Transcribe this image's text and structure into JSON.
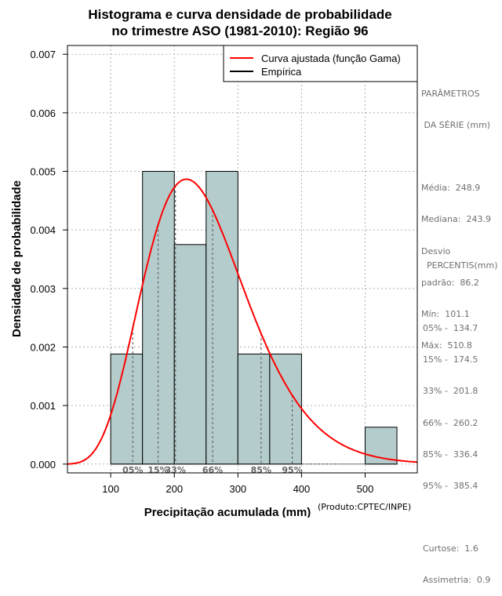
{
  "chart_data": {
    "type": "histogram",
    "title": [
      "Histograma e curva densidade de probabilidade",
      "no trimestre ASO (1981-2010): Região 96"
    ],
    "xlabel": "Precipitação acumulada (mm)",
    "ylabel": "Densidade de probabilidade",
    "xlim": [
      32,
      582
    ],
    "ylim": [
      -0.00015,
      0.00715
    ],
    "x_ticks": [
      100,
      200,
      300,
      400,
      500
    ],
    "y_ticks": [
      0.0,
      0.001,
      0.002,
      0.003,
      0.004,
      0.005,
      0.006,
      0.007
    ],
    "y_tick_labels": [
      "0.000",
      "0.001",
      "0.002",
      "0.003",
      "0.004",
      "0.005",
      "0.006",
      "0.007"
    ],
    "grid": true,
    "bins": [
      {
        "x0": 100,
        "x1": 150,
        "density": 0.00188
      },
      {
        "x0": 150,
        "x1": 200,
        "density": 0.005
      },
      {
        "x0": 200,
        "x1": 250,
        "density": 0.00375
      },
      {
        "x0": 250,
        "x1": 300,
        "density": 0.005
      },
      {
        "x0": 300,
        "x1": 350,
        "density": 0.00188
      },
      {
        "x0": 350,
        "x1": 400,
        "density": 0.00188
      },
      {
        "x0": 500,
        "x1": 550,
        "density": 0.00063
      }
    ],
    "gamma_fit": {
      "shape": 8.3,
      "scale": 30.0
    },
    "percentile_markers": [
      {
        "label": "05%",
        "value": 134.7
      },
      {
        "label": "15%",
        "value": 174.5
      },
      {
        "label": "33%",
        "value": 201.8
      },
      {
        "label": "66%",
        "value": 260.2
      },
      {
        "label": "85%",
        "value": 336.4
      },
      {
        "label": "95%",
        "value": 385.4
      }
    ],
    "legend": {
      "position": "top-right",
      "entries": [
        {
          "label": "Curva ajustada (função Gama)",
          "color": "#ff0000"
        },
        {
          "label": "Empírica",
          "color": "#000000"
        }
      ]
    },
    "colors": {
      "bar_fill": "#b4cccc",
      "curve": "#ff0000",
      "grid": "#b0b0b0",
      "marker": "#666666"
    }
  },
  "parametros": {
    "header1": "PARÂMETROS",
    "header2": " DA SÉRIE (mm)",
    "media": "Média:  248.9",
    "mediana": "Mediana:  243.9",
    "desvio1": "Desvio",
    "desvio2": "padrão:  86.2",
    "min": "Mín:  101.1",
    "max": "Máx:  510.8"
  },
  "percentis": {
    "header": "PERCENTIS(mm)",
    "p05": "05% -  134.7",
    "p15": "15% -  174.5",
    "p33": "33% -  201.8",
    "p66": "66% -  260.2",
    "p85": "85% -  336.4",
    "p95": "95% -  385.4",
    "curtose": "Curtose:  1.6",
    "assimetria": "Assimetria:  0.9"
  },
  "credit": "(Produto:CPTEC/INPE)"
}
